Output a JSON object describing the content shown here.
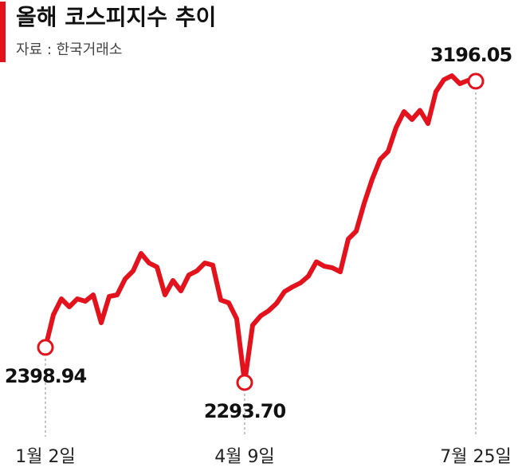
{
  "chart_data": {
    "type": "line",
    "title": "올해 코스피지수 추이",
    "subtitle": "자료 : 한국거래소",
    "color": "#e3121c",
    "categories": [
      "1월 2일",
      null,
      null,
      null,
      null,
      null,
      null,
      null,
      null,
      null,
      null,
      null,
      null,
      null,
      null,
      null,
      null,
      null,
      null,
      null,
      null,
      null,
      null,
      null,
      null,
      "4월 9일",
      null,
      null,
      null,
      null,
      null,
      null,
      null,
      null,
      null,
      null,
      null,
      null,
      null,
      null,
      null,
      null,
      null,
      null,
      null,
      null,
      null,
      null,
      null,
      null,
      null,
      null,
      null,
      null,
      "7월 25일"
    ],
    "values": [
      2398.94,
      2496.6,
      2544.3,
      2520.4,
      2544.3,
      2537.1,
      2556.2,
      2472.7,
      2551.5,
      2556.2,
      2604.0,
      2627.8,
      2680.3,
      2651.7,
      2639.8,
      2556.2,
      2599.2,
      2568.2,
      2615.9,
      2627.8,
      2651.7,
      2645.3,
      2541.0,
      2532.4,
      2484.6,
      2293.7,
      2465.5,
      2493.1,
      2508.5,
      2530.6,
      2566.0,
      2580.1,
      2592.0,
      2612.4,
      2655.2,
      2641.9,
      2637.4,
      2625.1,
      2723.3,
      2747.2,
      2830.7,
      2902.3,
      2961.9,
      2985.8,
      3057.4,
      3105.1,
      3081.3,
      3108.7,
      3069.3,
      3164.8,
      3200.6,
      3212.5,
      3188.7,
      3198.2,
      3196.05
    ],
    "value_labels": [
      "2398.94",
      null,
      null,
      null,
      null,
      null,
      null,
      null,
      null,
      null,
      null,
      null,
      null,
      null,
      null,
      null,
      null,
      null,
      null,
      null,
      null,
      null,
      null,
      null,
      null,
      "2293.70",
      null,
      null,
      null,
      null,
      null,
      null,
      null,
      null,
      null,
      null,
      null,
      null,
      null,
      null,
      null,
      null,
      null,
      null,
      null,
      null,
      null,
      null,
      null,
      null,
      null,
      null,
      null,
      null,
      "3196.05"
    ]
  }
}
